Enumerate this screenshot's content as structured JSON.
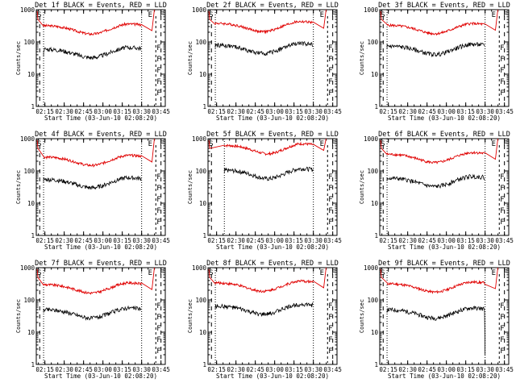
{
  "figure": {
    "panels_per_row": 3,
    "panels": [
      {
        "title": "Det 1f BLACK = Events, RED = LLD",
        "flag": "top"
      },
      {
        "title": "Det 2f BLACK = Events, RED = LLD",
        "flag": "none"
      },
      {
        "title": "Det 3f BLACK = Events, RED = LLD",
        "flag": "none"
      },
      {
        "title": "Det 4f BLACK = Events, RED = LLD",
        "flag": "top"
      },
      {
        "title": "Det 5f BLACK = Events, RED = LLD",
        "flag": "none"
      },
      {
        "title": "Det 6f BLACK = Events, RED = LLD",
        "flag": "none"
      },
      {
        "title": "Det 7f BLACK = Events, RED = LLD",
        "flag": "none"
      },
      {
        "title": "Det 8f BLACK = Events, RED = LLD",
        "flag": "none"
      },
      {
        "title": "Det 9f BLACK = Events, RED = LLD",
        "flag": "none"
      }
    ]
  },
  "chart_data": {
    "type": "line",
    "layout": "3x3 small multiples",
    "xlabel": "Start Time (03-Jun-10 02:08:20)",
    "ylabel": "Counts/sec",
    "y_scale": "log",
    "ylim": [
      1,
      1000
    ],
    "ytick_labels": [
      "1",
      "10",
      "100",
      "1000"
    ],
    "xlim": [
      "02:08:20",
      "03:48:20"
    ],
    "xtick_labels": [
      "02:15",
      "02:30",
      "02:45",
      "03:00",
      "03:15",
      "03:30",
      "03:45"
    ],
    "series_colors": {
      "events": "#000000",
      "lld": "#e00000"
    },
    "markers": {
      "start_letter": "S",
      "end_letter": "E",
      "f_letter": "F"
    },
    "panels": [
      {
        "detector": "1f",
        "time_range": [
          "02:14",
          "03:30"
        ],
        "lld_base": 320,
        "events_base": 60,
        "events_start_low": 35
      },
      {
        "detector": "2f",
        "time_range": [
          "02:14",
          "03:30"
        ],
        "lld_base": 380,
        "events_base": 80
      },
      {
        "detector": "3f",
        "time_range": [
          "02:14",
          "03:30"
        ],
        "lld_base": 330,
        "events_base": 75
      },
      {
        "detector": "4f",
        "time_range": [
          "02:14",
          "03:30"
        ],
        "lld_base": 270,
        "events_base": 55
      },
      {
        "detector": "5f",
        "time_range": [
          "02:21",
          "03:30"
        ],
        "lld_base": 620,
        "events_base": 105
      },
      {
        "detector": "6f",
        "time_range": [
          "02:14",
          "03:30"
        ],
        "lld_base": 330,
        "events_base": 60
      },
      {
        "detector": "7f",
        "time_range": [
          "02:14",
          "03:30"
        ],
        "lld_base": 300,
        "events_base": 50
      },
      {
        "detector": "8f",
        "time_range": [
          "02:14",
          "03:30"
        ],
        "lld_base": 340,
        "events_base": 65
      },
      {
        "detector": "9f",
        "time_range": [
          "02:14",
          "03:30"
        ],
        "lld_base": 320,
        "events_base": 50,
        "events_end_drop": 2
      }
    ]
  }
}
